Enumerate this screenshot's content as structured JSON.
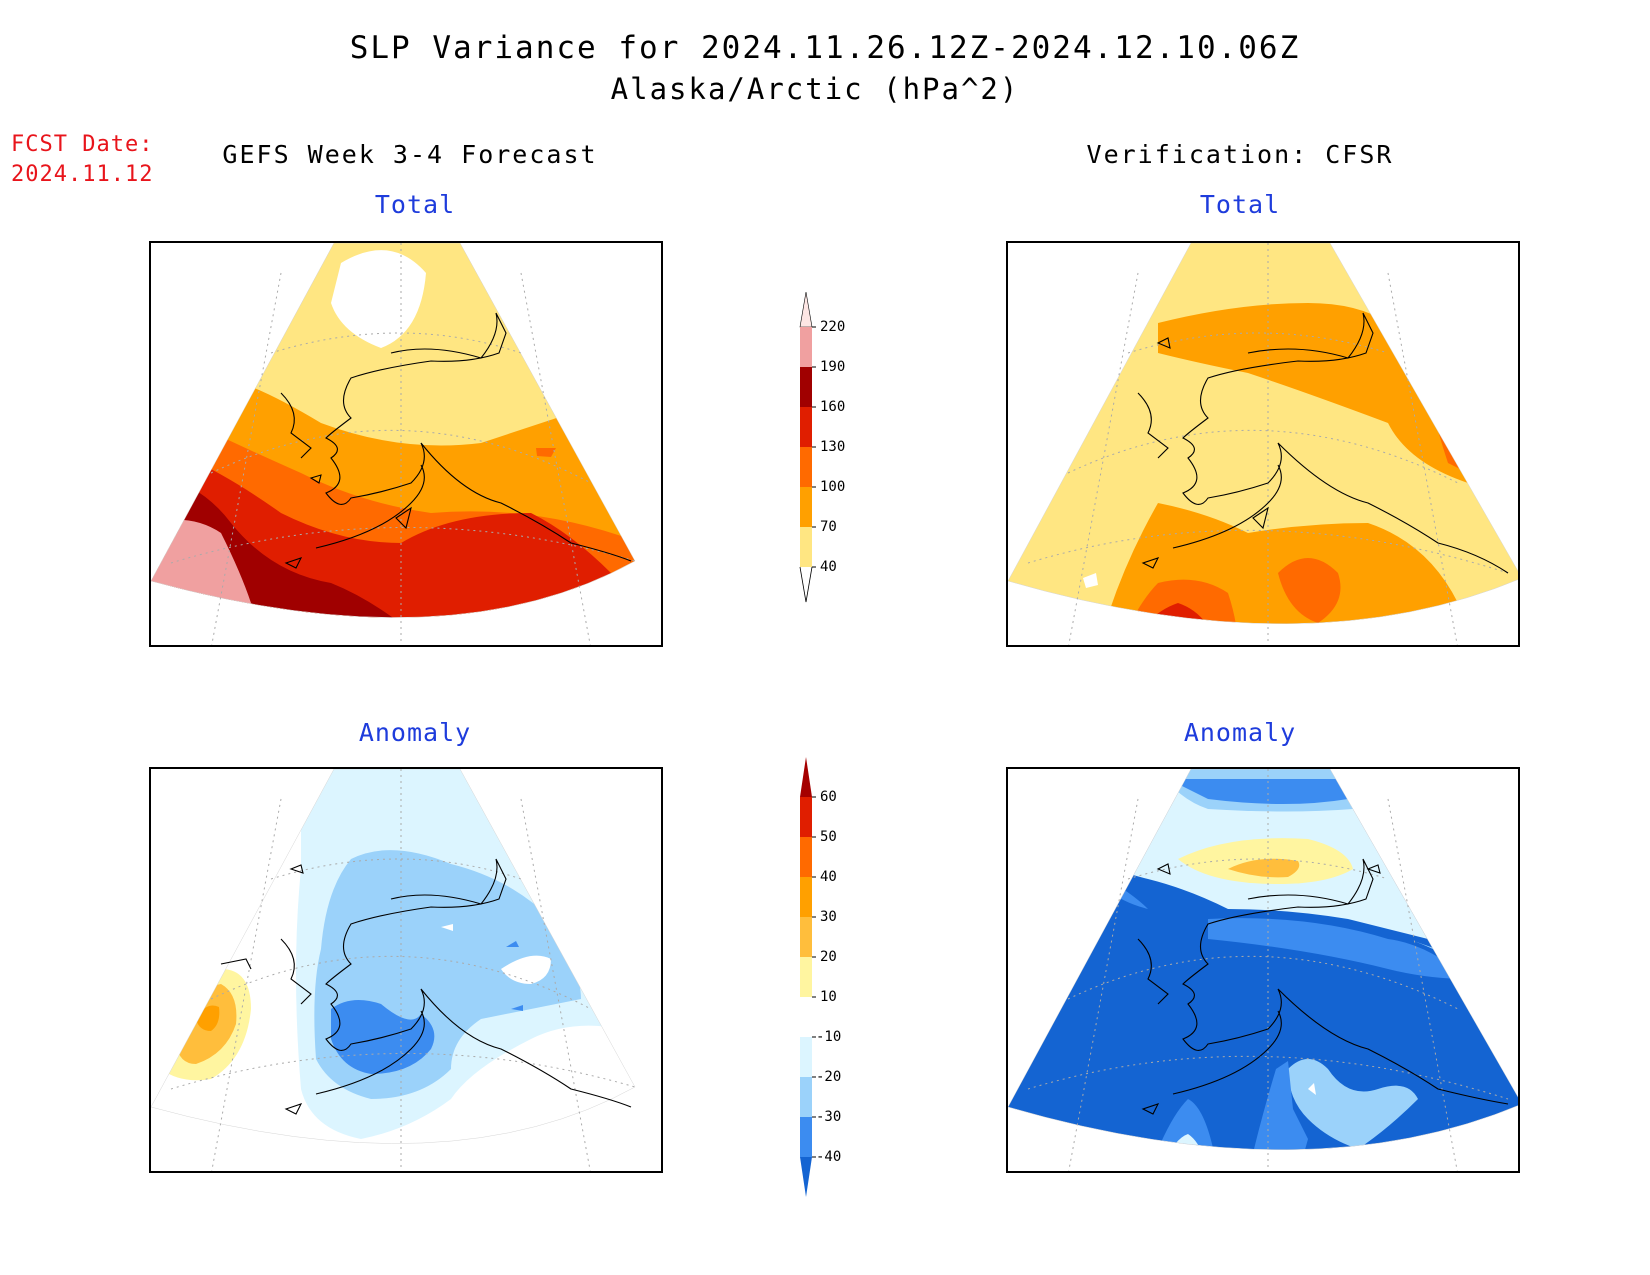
{
  "header": {
    "title_line1": "SLP Variance for 2024.11.26.12Z-2024.12.10.06Z",
    "title_line2": "Alaska/Arctic (hPa^2)",
    "fcst_label": "FCST Date:",
    "fcst_date": "2024.11.12"
  },
  "columns": {
    "forecast_title": "GEFS Week 3-4 Forecast",
    "verification_title": "Verification: CFSR"
  },
  "panels": {
    "total_label": "Total",
    "anomaly_label": "Anomaly"
  },
  "colorbar_total": {
    "ticks": [
      "220",
      "190",
      "160",
      "130",
      "100",
      "70",
      "40"
    ],
    "colors": [
      "#fde6e4",
      "#f0a0a0",
      "#a00000",
      "#e01e00",
      "#ff6a00",
      "#ffa000",
      "#ffe682"
    ]
  },
  "colorbar_anomaly": {
    "ticks": [
      "60",
      "50",
      "40",
      "30",
      "20",
      "10",
      "-10",
      "-20",
      "-30",
      "-40"
    ],
    "colors": [
      "#a50000",
      "#e01e00",
      "#ff6a00",
      "#ffa000",
      "#ffbe3c",
      "#fff5a0",
      "#ffffff",
      "#dcf5ff",
      "#9bd2fa",
      "#3c8cf0",
      "#1464d2"
    ]
  },
  "map_colors": {
    "yellow": "#ffe682",
    "orange": "#ffa000",
    "dkorange": "#ff6a00",
    "red": "#e01e00",
    "dkred": "#a00000",
    "pink": "#f0a0a0",
    "lightblue": "#dcf5ff",
    "blue1": "#9bd2fa",
    "blue2": "#3c8cf0",
    "blue3": "#1464d2",
    "gold": "#ffbe3c",
    "paleyellow": "#fff5a0"
  }
}
